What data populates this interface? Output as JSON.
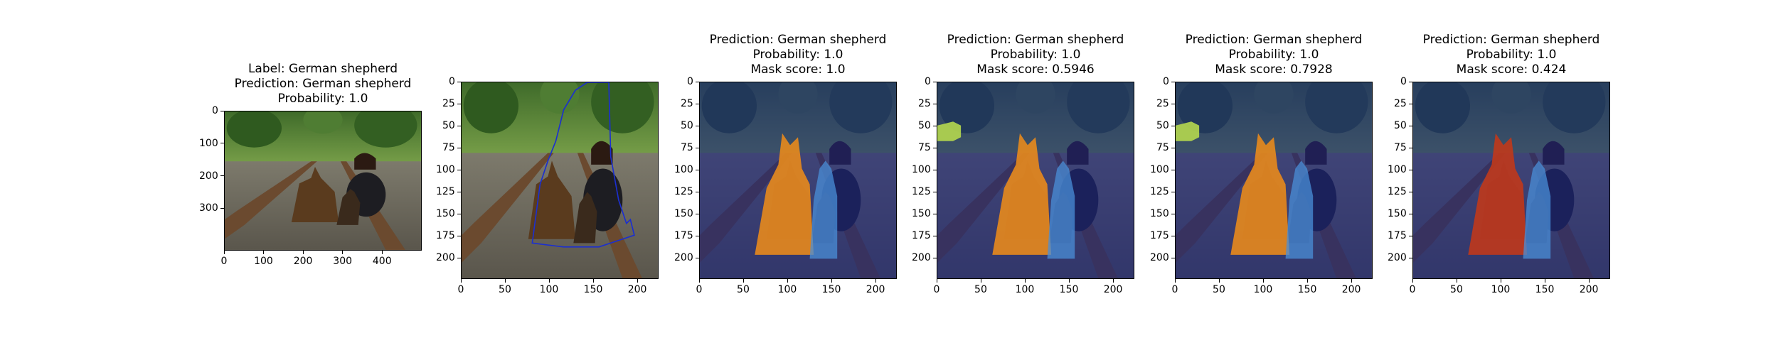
{
  "chart_data": [
    {
      "type": "image",
      "title_lines": [
        "Label: German shepherd",
        "Prediction: German shepherd",
        "Probability: 1.0"
      ],
      "x_ticks": [
        0,
        100,
        200,
        300,
        400
      ],
      "y_ticks": [
        0,
        100,
        200,
        300
      ],
      "xlim": [
        0,
        500
      ],
      "ylim": [
        0,
        430
      ],
      "overlay": "none"
    },
    {
      "type": "image",
      "title_lines": [],
      "x_ticks": [
        0,
        50,
        100,
        150,
        200
      ],
      "y_ticks": [
        0,
        25,
        50,
        75,
        100,
        125,
        150,
        175,
        200
      ],
      "xlim": [
        0,
        224
      ],
      "ylim": [
        0,
        224
      ],
      "overlay": "outline"
    },
    {
      "type": "image",
      "title_lines": [
        "Prediction: German shepherd",
        "Probability: 1.0",
        "Mask score: 1.0"
      ],
      "x_ticks": [
        0,
        50,
        100,
        150,
        200
      ],
      "y_ticks": [
        0,
        25,
        50,
        75,
        100,
        125,
        150,
        175,
        200
      ],
      "xlim": [
        0,
        224
      ],
      "ylim": [
        0,
        224
      ],
      "overlay": "mask-a"
    },
    {
      "type": "image",
      "title_lines": [
        "Prediction: German shepherd",
        "Probability: 1.0",
        "Mask score: 0.5946"
      ],
      "x_ticks": [
        0,
        50,
        100,
        150,
        200
      ],
      "y_ticks": [
        0,
        25,
        50,
        75,
        100,
        125,
        150,
        175,
        200
      ],
      "xlim": [
        0,
        224
      ],
      "ylim": [
        0,
        224
      ],
      "overlay": "mask-b"
    },
    {
      "type": "image",
      "title_lines": [
        "Prediction: German shepherd",
        "Probability: 1.0",
        "Mask score: 0.7928"
      ],
      "x_ticks": [
        0,
        50,
        100,
        150,
        200
      ],
      "y_ticks": [
        0,
        25,
        50,
        75,
        100,
        125,
        150,
        175,
        200
      ],
      "xlim": [
        0,
        224
      ],
      "ylim": [
        0,
        224
      ],
      "overlay": "mask-b"
    },
    {
      "type": "image",
      "title_lines": [
        "Prediction: German shepherd",
        "Probability: 1.0",
        "Mask score: 0.424"
      ],
      "x_ticks": [
        0,
        50,
        100,
        150,
        200
      ],
      "y_ticks": [
        0,
        25,
        50,
        75,
        100,
        125,
        150,
        175,
        200
      ],
      "xlim": [
        0,
        224
      ],
      "ylim": [
        0,
        224
      ],
      "overlay": "mask-c"
    }
  ],
  "colors": {
    "mask_dark": "#1a237e",
    "dog_orange": "#e8891c",
    "dog_blue": "#4a8fd8",
    "patch_green": "#b5d84e",
    "dog_red": "#c0391b"
  }
}
